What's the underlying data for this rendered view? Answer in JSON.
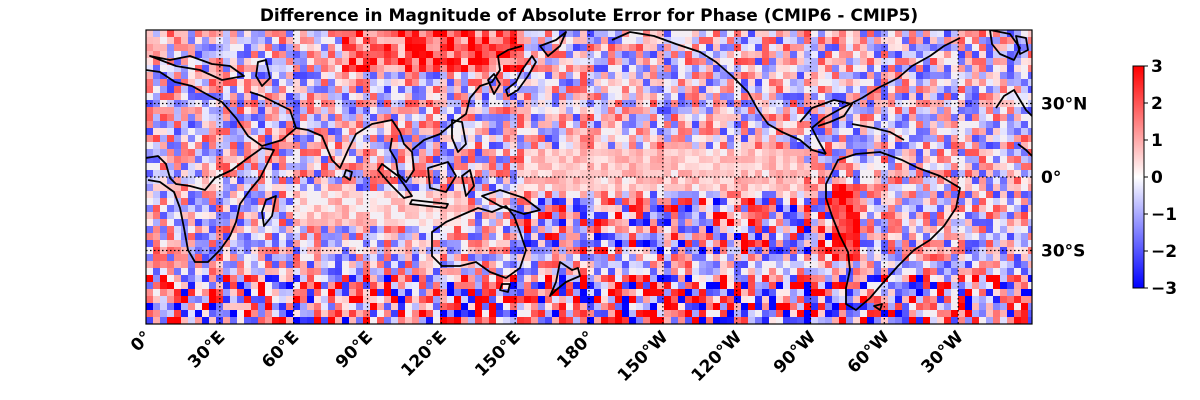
{
  "chart_data": {
    "type": "heatmap",
    "title": "Difference in Magnitude of Absolute Error for Phase (CMIP6 - CMIP5)",
    "projection": "PlateCarree, central longitude 180",
    "lon_range": [
      0,
      360
    ],
    "lat_range": [
      -60,
      60
    ],
    "gridlines": {
      "lon_step": 30,
      "lat_step": 30,
      "style": "dotted"
    },
    "coastlines": true,
    "xticks": [
      {
        "lon": 0,
        "label": "0°"
      },
      {
        "lon": 30,
        "label": "30°E"
      },
      {
        "lon": 60,
        "label": "60°E"
      },
      {
        "lon": 90,
        "label": "90°E"
      },
      {
        "lon": 120,
        "label": "120°E"
      },
      {
        "lon": 150,
        "label": "150°E"
      },
      {
        "lon": 180,
        "label": "180°"
      },
      {
        "lon": 210,
        "label": "150°W"
      },
      {
        "lon": 240,
        "label": "120°W"
      },
      {
        "lon": 270,
        "label": "90°W"
      },
      {
        "lon": 300,
        "label": "60°W"
      },
      {
        "lon": 330,
        "label": "30°W"
      }
    ],
    "yticks": [
      {
        "lat": 30,
        "label": "30°N"
      },
      {
        "lat": 0,
        "label": "0°"
      },
      {
        "lat": -30,
        "label": "30°S"
      }
    ],
    "colorbar": {
      "cmap": "bwr",
      "vmin": -3,
      "vmax": 3,
      "ticks": [
        3,
        2,
        1,
        0,
        -1,
        -2,
        -3
      ],
      "tick_labels": [
        "3",
        "2",
        "1",
        "0",
        "−1",
        "−2",
        "−3"
      ]
    },
    "features": [
      {
        "region": "North Pacific / Siberia coast",
        "sign": "positive"
      },
      {
        "region": "Equatorial Pacific cold tongue",
        "sign": "weakly positive"
      },
      {
        "region": "South Pacific ~15°S band",
        "sign": "mixed, strong"
      },
      {
        "region": "Indian Ocean ~15°S",
        "sign": "weakly positive"
      },
      {
        "region": "Off Peru / Chile",
        "sign": "positive"
      },
      {
        "region": "Southern Ocean",
        "sign": "noisy mixed"
      }
    ]
  }
}
